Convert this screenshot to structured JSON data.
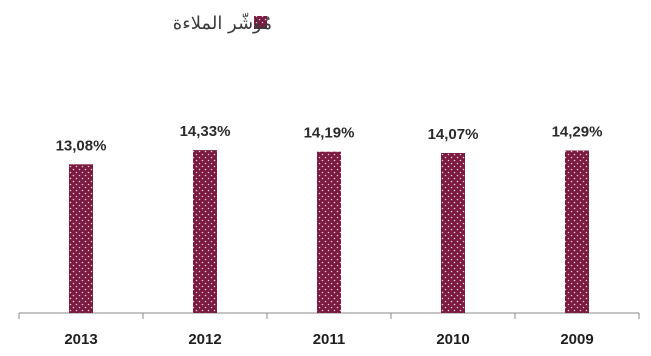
{
  "chart_data": {
    "type": "bar",
    "categories": [
      "2013",
      "2012",
      "2011",
      "2010",
      "2009"
    ],
    "series": [
      {
        "name": "مُؤشّر الملاءة",
        "values": [
          13.08,
          14.33,
          14.19,
          14.07,
          14.29
        ],
        "labels": [
          "13,08%",
          "14,33%",
          "14,19%",
          "14,07%",
          "14,29%"
        ]
      }
    ],
    "title": "",
    "xlabel": "",
    "ylabel": "",
    "ylim": [
      0,
      14.6
    ],
    "grid": false,
    "legend_position": "top",
    "bar_color": "#7a1a40",
    "bar_dot_color": "#e8c8d4"
  }
}
